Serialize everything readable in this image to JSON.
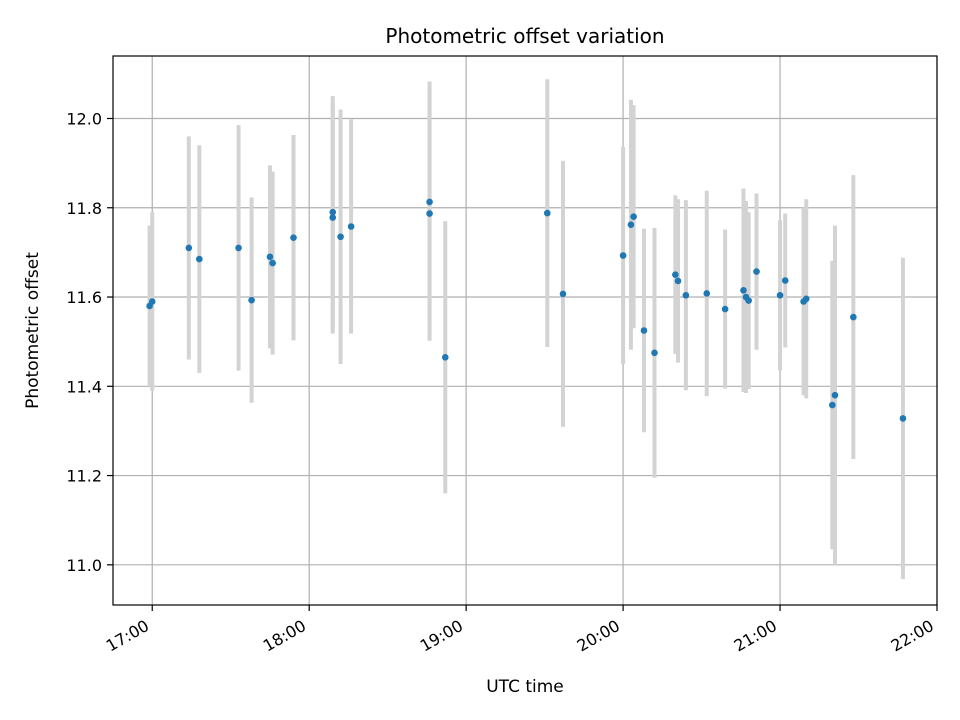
{
  "chart_data": {
    "type": "scatter",
    "title": "Photometric offset variation",
    "xlabel": "UTC time",
    "ylabel": "Photometric offset",
    "x_unit": "hours UTC",
    "xlim": [
      16.75,
      22.0
    ],
    "ylim": [
      10.91,
      12.14
    ],
    "x_ticks": [
      17,
      18,
      19,
      20,
      21,
      22
    ],
    "x_tick_labels": [
      "17:00",
      "18:00",
      "19:00",
      "20:00",
      "21:00",
      "22:00"
    ],
    "y_ticks": [
      11.0,
      11.2,
      11.4,
      11.6,
      11.8,
      12.0
    ],
    "y_tick_labels": [
      "11.0",
      "11.2",
      "11.4",
      "11.6",
      "11.8",
      "12.0"
    ],
    "grid": true,
    "colors": {
      "marker": "#1f77b4",
      "errorbar": "#d3d3d3",
      "grid": "#b0b0b0"
    },
    "points": [
      {
        "x": 16.983,
        "y": 11.58,
        "err": 0.18
      },
      {
        "x": 17.0,
        "y": 11.59,
        "err": 0.2
      },
      {
        "x": 17.233,
        "y": 11.71,
        "err": 0.25
      },
      {
        "x": 17.3,
        "y": 11.685,
        "err": 0.255
      },
      {
        "x": 17.55,
        "y": 11.71,
        "err": 0.275
      },
      {
        "x": 17.633,
        "y": 11.593,
        "err": 0.23
      },
      {
        "x": 17.75,
        "y": 11.69,
        "err": 0.205
      },
      {
        "x": 17.767,
        "y": 11.676,
        "err": 0.205
      },
      {
        "x": 17.9,
        "y": 11.733,
        "err": 0.23
      },
      {
        "x": 18.15,
        "y": 11.79,
        "err": 0.26
      },
      {
        "x": 18.15,
        "y": 11.778,
        "err": 0.26
      },
      {
        "x": 18.2,
        "y": 11.735,
        "err": 0.285
      },
      {
        "x": 18.267,
        "y": 11.758,
        "err": 0.24
      },
      {
        "x": 18.767,
        "y": 11.813,
        "err": 0.27
      },
      {
        "x": 18.767,
        "y": 11.787,
        "err": 0.285
      },
      {
        "x": 18.867,
        "y": 11.465,
        "err": 0.305
      },
      {
        "x": 19.517,
        "y": 11.788,
        "err": 0.3
      },
      {
        "x": 19.617,
        "y": 11.607,
        "err": 0.298
      },
      {
        "x": 20.0,
        "y": 11.693,
        "err": 0.243
      },
      {
        "x": 20.05,
        "y": 11.762,
        "err": 0.28
      },
      {
        "x": 20.067,
        "y": 11.78,
        "err": 0.25
      },
      {
        "x": 20.133,
        "y": 11.525,
        "err": 0.228
      },
      {
        "x": 20.2,
        "y": 11.475,
        "err": 0.28
      },
      {
        "x": 20.333,
        "y": 11.65,
        "err": 0.178
      },
      {
        "x": 20.35,
        "y": 11.636,
        "err": 0.183
      },
      {
        "x": 20.4,
        "y": 11.604,
        "err": 0.213
      },
      {
        "x": 20.533,
        "y": 11.608,
        "err": 0.23
      },
      {
        "x": 20.65,
        "y": 11.573,
        "err": 0.178
      },
      {
        "x": 20.767,
        "y": 11.615,
        "err": 0.228
      },
      {
        "x": 20.783,
        "y": 11.6,
        "err": 0.215
      },
      {
        "x": 20.8,
        "y": 11.592,
        "err": 0.198
      },
      {
        "x": 20.85,
        "y": 11.657,
        "err": 0.175
      },
      {
        "x": 21.0,
        "y": 11.604,
        "err": 0.168
      },
      {
        "x": 21.033,
        "y": 11.637,
        "err": 0.15
      },
      {
        "x": 21.15,
        "y": 11.59,
        "err": 0.21
      },
      {
        "x": 21.167,
        "y": 11.596,
        "err": 0.223
      },
      {
        "x": 21.333,
        "y": 11.358,
        "err": 0.323
      },
      {
        "x": 21.35,
        "y": 11.38,
        "err": 0.38
      },
      {
        "x": 21.467,
        "y": 11.555,
        "err": 0.318
      },
      {
        "x": 21.783,
        "y": 11.328,
        "err": 0.36
      }
    ]
  }
}
